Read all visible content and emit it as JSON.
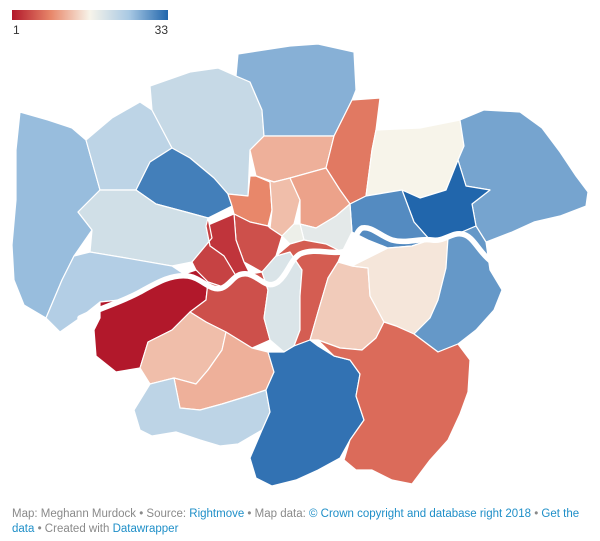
{
  "legend": {
    "min_label": "1",
    "max_label": "33",
    "min_value": 1,
    "max_value": 33,
    "color_stops": [
      "#b2182b",
      "#e8876a",
      "#f7f4ea",
      "#a9c9e4",
      "#2166ac"
    ]
  },
  "boroughs": [
    {
      "id": "hillingdon",
      "rank": 26
    },
    {
      "id": "harrow",
      "rank": 23
    },
    {
      "id": "barnet",
      "rank": 22
    },
    {
      "id": "enfield",
      "rank": 27
    },
    {
      "id": "brent",
      "rank": 31
    },
    {
      "id": "ealing",
      "rank": 21
    },
    {
      "id": "haringey",
      "rank": 12
    },
    {
      "id": "waltham-forest",
      "rank": 8
    },
    {
      "id": "redbridge",
      "rank": 17
    },
    {
      "id": "havering",
      "rank": 28
    },
    {
      "id": "camden",
      "rank": 9
    },
    {
      "id": "islington",
      "rank": 13
    },
    {
      "id": "hackney",
      "rank": 11
    },
    {
      "id": "barking-dagenham",
      "rank": 33
    },
    {
      "id": "newham",
      "rank": 30
    },
    {
      "id": "tower-hamlets",
      "rank": 19
    },
    {
      "id": "city-of-london",
      "rank": 18
    },
    {
      "id": "westminster",
      "rank": 5
    },
    {
      "id": "kensington-chelsea",
      "rank": 3
    },
    {
      "id": "hammersmith-fulham",
      "rank": 4
    },
    {
      "id": "hounslow",
      "rank": 24
    },
    {
      "id": "richmond",
      "rank": 1
    },
    {
      "id": "wandsworth",
      "rank": 5
    },
    {
      "id": "lambeth",
      "rank": 20
    },
    {
      "id": "southwark",
      "rank": 6
    },
    {
      "id": "lewisham",
      "rank": 14
    },
    {
      "id": "greenwich",
      "rank": 16
    },
    {
      "id": "bexley",
      "rank": 29
    },
    {
      "id": "kingston",
      "rank": 13
    },
    {
      "id": "merton",
      "rank": 12
    },
    {
      "id": "sutton",
      "rank": 23
    },
    {
      "id": "croydon",
      "rank": 32
    },
    {
      "id": "bromley",
      "rank": 7
    }
  ],
  "footer": {
    "map_by": "Map: Meghann Murdock",
    "sep1": " • Source: ",
    "source_link": "Rightmove",
    "sep2": " • Map data: ",
    "mapdata_link": "© Crown copyright and database right 2018",
    "sep3": " • ",
    "getdata_link": "Get the data",
    "sep4": " • Created with ",
    "created_link": "Datawrapper"
  }
}
